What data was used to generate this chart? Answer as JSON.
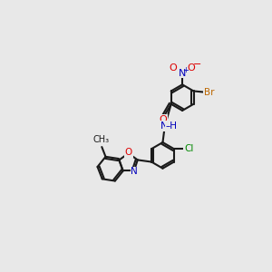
{
  "bg_color": "#e8e8e8",
  "bond_color": "#1a1a1a",
  "bond_lw": 1.5,
  "atom_colors": {
    "O": "#dd0000",
    "N": "#0000bb",
    "Br": "#bb6600",
    "Cl": "#008800",
    "C": "#1a1a1a"
  },
  "fs": 7.5,
  "r6": 0.62,
  "r5": 0.46
}
